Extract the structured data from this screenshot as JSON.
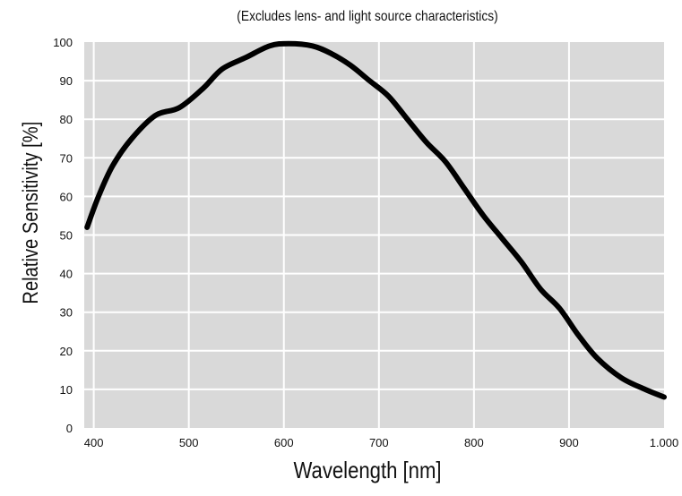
{
  "chart_data": {
    "type": "line",
    "title": "",
    "subtitle": "(Excludes lens- and light source characteristics)",
    "xlabel": "Wavelength [nm]",
    "ylabel": "Relative Sensitivity [%]",
    "xlim": [
      390,
      1000
    ],
    "ylim": [
      0,
      100
    ],
    "x_ticks": [
      400,
      500,
      600,
      700,
      800,
      900,
      1000
    ],
    "x_tick_labels": [
      "400",
      "500",
      "600",
      "700",
      "800",
      "900",
      "1.000"
    ],
    "y_ticks": [
      0,
      10,
      20,
      30,
      40,
      50,
      60,
      70,
      80,
      90,
      100
    ],
    "y_tick_labels": [
      "0",
      "10",
      "20",
      "30",
      "40",
      "50",
      "60",
      "70",
      "80",
      "90",
      "100"
    ],
    "grid": true,
    "legend": "none",
    "colors": {
      "background": "#d9d9d9",
      "grid": "#ffffff",
      "line": "#000000",
      "text": "#111111"
    },
    "series": [
      {
        "x": [
          393,
          405,
          420,
          440,
          465,
          490,
          515,
          535,
          560,
          585,
          605,
          630,
          650,
          670,
          690,
          710,
          730,
          750,
          770,
          790,
          810,
          830,
          850,
          870,
          890,
          910,
          930,
          955,
          980,
          1000
        ],
        "values": [
          52,
          60,
          68,
          75,
          81,
          83,
          88,
          93,
          96,
          99,
          99.6,
          99,
          97,
          94,
          90,
          86,
          80,
          74,
          69,
          62,
          55,
          49,
          43,
          36,
          31,
          24,
          18,
          13,
          10,
          8
        ]
      }
    ]
  }
}
